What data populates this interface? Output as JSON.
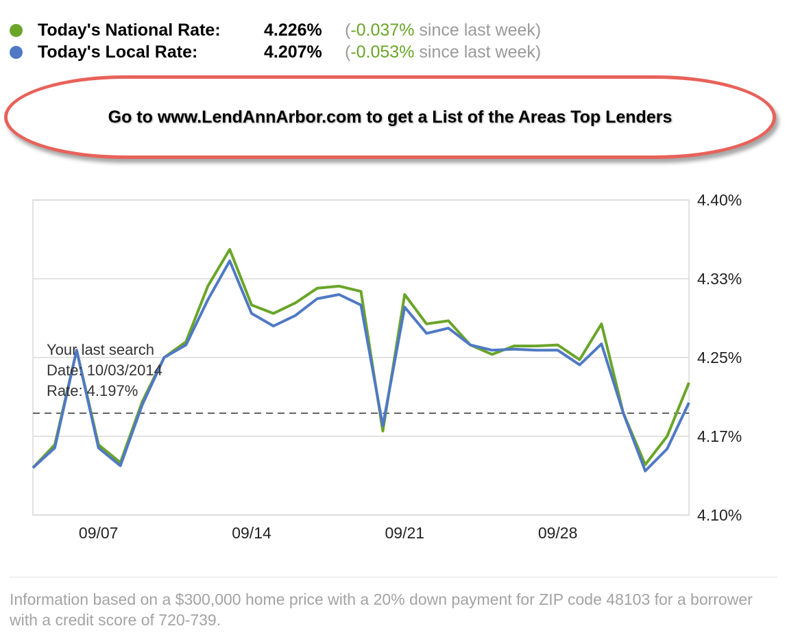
{
  "legend": {
    "national": {
      "label": "Today's National Rate:",
      "value": "4.226%",
      "change_open": "(",
      "change": "-0.037%",
      "change_close": " since last week)",
      "color": "#6aa529"
    },
    "local": {
      "label": "Today's Local Rate:",
      "value": "4.207%",
      "change_open": "(",
      "change": "-0.053%",
      "change_close": " since last week)",
      "color": "#4f79c4"
    }
  },
  "banner": {
    "text": "Go to www.LendAnnArbor.com to get a List of the Areas Top Lenders",
    "border_color": "#e8625a"
  },
  "tooltip": {
    "line1": "Your last search",
    "line2": "Date: 10/03/2014",
    "line3": "Rate: 4.197%"
  },
  "chart_data": {
    "type": "line",
    "ylim": [
      4.1,
      4.4
    ],
    "yticks": [
      "4.40%",
      "4.33%",
      "4.25%",
      "4.17%",
      "4.10%"
    ],
    "xticks": [
      {
        "label": "09/07",
        "day": 7
      },
      {
        "label": "09/14",
        "day": 14
      },
      {
        "label": "09/21",
        "day": 21
      },
      {
        "label": "09/28",
        "day": 28
      }
    ],
    "xlim_days": [
      4,
      34
    ],
    "reference_line": {
      "value": 4.197,
      "style": "dashed"
    },
    "grid": true,
    "series": [
      {
        "color": "#6aa529",
        "points": [
          [
            4,
            4.145
          ],
          [
            5,
            4.167
          ],
          [
            6,
            4.257
          ],
          [
            7,
            4.167
          ],
          [
            8,
            4.15
          ],
          [
            9,
            4.208
          ],
          [
            10,
            4.25
          ],
          [
            11,
            4.265
          ],
          [
            12,
            4.318
          ],
          [
            13,
            4.353
          ],
          [
            14,
            4.3
          ],
          [
            15,
            4.292
          ],
          [
            16,
            4.302
          ],
          [
            17,
            4.316
          ],
          [
            18,
            4.318
          ],
          [
            19,
            4.313
          ],
          [
            20,
            4.18
          ],
          [
            21,
            4.31
          ],
          [
            22,
            4.282
          ],
          [
            23,
            4.285
          ],
          [
            24,
            4.262
          ],
          [
            25,
            4.253
          ],
          [
            26,
            4.261
          ],
          [
            27,
            4.261
          ],
          [
            28,
            4.262
          ],
          [
            29,
            4.248
          ],
          [
            30,
            4.282
          ],
          [
            31,
            4.197
          ],
          [
            32,
            4.148
          ],
          [
            33,
            4.175
          ],
          [
            34,
            4.226
          ]
        ]
      },
      {
        "color": "#4f79c4",
        "points": [
          [
            4,
            4.145
          ],
          [
            5,
            4.164
          ],
          [
            6,
            4.257
          ],
          [
            7,
            4.164
          ],
          [
            8,
            4.147
          ],
          [
            9,
            4.205
          ],
          [
            10,
            4.25
          ],
          [
            11,
            4.262
          ],
          [
            12,
            4.305
          ],
          [
            13,
            4.342
          ],
          [
            14,
            4.292
          ],
          [
            15,
            4.28
          ],
          [
            16,
            4.29
          ],
          [
            17,
            4.306
          ],
          [
            18,
            4.31
          ],
          [
            19,
            4.3
          ],
          [
            20,
            4.185
          ],
          [
            21,
            4.298
          ],
          [
            22,
            4.273
          ],
          [
            23,
            4.278
          ],
          [
            24,
            4.262
          ],
          [
            25,
            4.257
          ],
          [
            26,
            4.258
          ],
          [
            27,
            4.257
          ],
          [
            28,
            4.257
          ],
          [
            29,
            4.243
          ],
          [
            30,
            4.263
          ],
          [
            31,
            4.197
          ],
          [
            32,
            4.142
          ],
          [
            33,
            4.163
          ],
          [
            34,
            4.207
          ]
        ]
      }
    ]
  },
  "footnote": "Information based on a $300,000 home price with a 20% down payment for ZIP code 48103 for a borrower with a credit score of 720-739."
}
